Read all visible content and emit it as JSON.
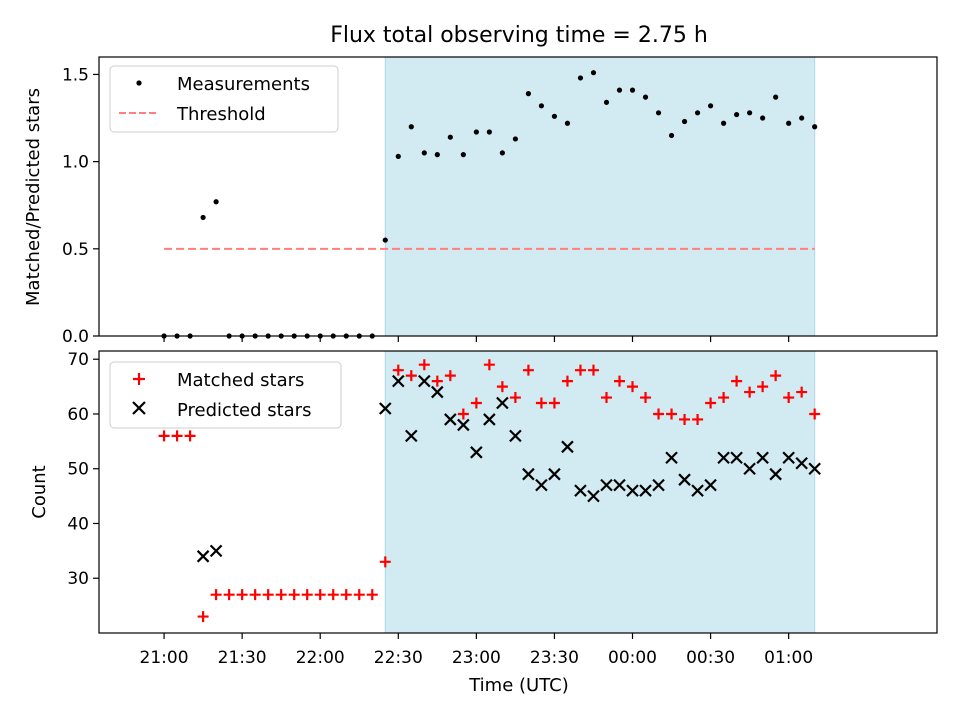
{
  "title": "Flux total observing time = 2.75 h",
  "x_axis": {
    "label": "Time (UTC)",
    "ticks": [
      "21:00",
      "21:30",
      "22:00",
      "22:30",
      "23:00",
      "23:30",
      "00:00",
      "00:30",
      "01:00"
    ]
  },
  "colors": {
    "measurements": "#000000",
    "threshold": "#ff7f7f",
    "matched": "#ff0000",
    "predicted": "#000000",
    "observing_window": "#add8e6"
  },
  "chart_data": [
    {
      "type": "scatter",
      "ylabel": "Matched/Predicted stars",
      "ylim": [
        0,
        1.6
      ],
      "yticks": [
        "0.0",
        "0.5",
        "1.0",
        "1.5"
      ],
      "x_unit": "minutes after 21:00 UTC",
      "xlim": [
        -25,
        297
      ],
      "highlight_span": [
        85,
        250
      ],
      "legend": {
        "placement": "top-left",
        "entries": [
          "Measurements",
          "Threshold"
        ]
      },
      "threshold": {
        "name": "Threshold",
        "y": 0.5,
        "x_range": [
          0,
          250
        ]
      },
      "series": [
        {
          "name": "Measurements",
          "x": [
            0,
            5,
            10,
            15,
            20,
            25,
            30,
            35,
            40,
            45,
            50,
            55,
            60,
            65,
            70,
            75,
            80,
            85,
            90,
            95,
            100,
            105,
            110,
            115,
            120,
            125,
            130,
            135,
            140,
            145,
            150,
            155,
            160,
            165,
            170,
            175,
            180,
            185,
            190,
            195,
            200,
            205,
            210,
            215,
            220,
            225,
            230,
            235,
            240,
            245,
            250
          ],
          "y": [
            0,
            0,
            0,
            0.68,
            0.77,
            0,
            0,
            0,
            0,
            0,
            0,
            0,
            0,
            0,
            0,
            0,
            0,
            0.55,
            1.03,
            1.2,
            1.05,
            1.04,
            1.14,
            1.04,
            1.17,
            1.17,
            1.05,
            1.13,
            1.39,
            1.32,
            1.26,
            1.22,
            1.48,
            1.51,
            1.34,
            1.41,
            1.41,
            1.37,
            1.28,
            1.15,
            1.23,
            1.28,
            1.32,
            1.22,
            1.27,
            1.28,
            1.25,
            1.37,
            1.22,
            1.25,
            1.2
          ]
        }
      ]
    },
    {
      "type": "scatter",
      "ylabel": "Count",
      "ylim": [
        20,
        71.5
      ],
      "yticks": [
        "30",
        "40",
        "50",
        "60",
        "70"
      ],
      "x_unit": "minutes after 21:00 UTC",
      "xlim": [
        -25,
        297
      ],
      "highlight_span": [
        85,
        250
      ],
      "legend": {
        "placement": "top-left",
        "entries": [
          "Matched stars",
          "Predicted stars"
        ]
      },
      "series": [
        {
          "name": "Matched stars",
          "marker": "plus",
          "x": [
            0,
            5,
            10,
            15,
            20,
            25,
            30,
            35,
            40,
            45,
            50,
            55,
            60,
            65,
            70,
            75,
            80,
            85,
            90,
            95,
            100,
            105,
            110,
            115,
            120,
            125,
            130,
            135,
            140,
            145,
            150,
            155,
            160,
            165,
            170,
            175,
            180,
            185,
            190,
            195,
            200,
            205,
            210,
            215,
            220,
            225,
            230,
            235,
            240,
            245,
            250
          ],
          "y": [
            56,
            56,
            56,
            23,
            27,
            27,
            27,
            27,
            27,
            27,
            27,
            27,
            27,
            27,
            27,
            27,
            27,
            33,
            68,
            67,
            69,
            66,
            67,
            60,
            62,
            69,
            65,
            63,
            68,
            62,
            62,
            66,
            68,
            68,
            63,
            66,
            65,
            63,
            60,
            60,
            59,
            59,
            62,
            63,
            66,
            64,
            65,
            67,
            63,
            64,
            60
          ]
        },
        {
          "name": "Predicted stars",
          "marker": "x",
          "x": [
            15,
            20,
            85,
            90,
            95,
            100,
            105,
            110,
            115,
            120,
            125,
            130,
            135,
            140,
            145,
            150,
            155,
            160,
            165,
            170,
            175,
            180,
            185,
            190,
            195,
            200,
            205,
            210,
            215,
            220,
            225,
            230,
            235,
            240,
            245,
            250
          ],
          "y": [
            34,
            35,
            61,
            66,
            56,
            66,
            64,
            59,
            58,
            53,
            59,
            62,
            56,
            49,
            47,
            49,
            54,
            46,
            45,
            47,
            47,
            46,
            46,
            47,
            52,
            48,
            46,
            47,
            52,
            52,
            50,
            52,
            49,
            52,
            51,
            50
          ]
        }
      ]
    }
  ]
}
